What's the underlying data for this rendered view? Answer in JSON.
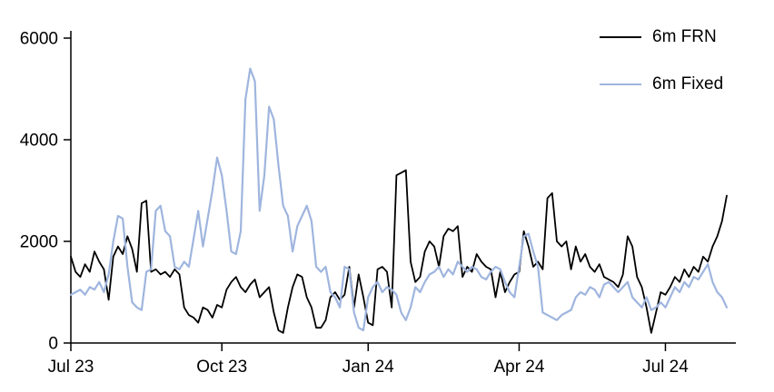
{
  "chart_data": {
    "type": "line",
    "title": "",
    "xlabel": "",
    "ylabel": "",
    "ylim": [
      0,
      6000
    ],
    "grid": false,
    "legend_position": "top-right",
    "x_tick_labels": [
      "Jul 23",
      "Oct 23",
      "Jan 24",
      "Apr 24",
      "Jul 24"
    ],
    "x_tick_indices": [
      0,
      32,
      63,
      95,
      126
    ],
    "y_ticks": [
      0,
      2000,
      4000,
      6000
    ],
    "axis_color": "#000000",
    "series": [
      {
        "name": "6m FRN",
        "color": "#000000",
        "width": 1.8,
        "values": [
          1700,
          1400,
          1300,
          1550,
          1400,
          1800,
          1600,
          1450,
          850,
          1700,
          1900,
          1750,
          2100,
          1850,
          1400,
          2750,
          2800,
          1400,
          1450,
          1350,
          1400,
          1300,
          1450,
          1350,
          700,
          550,
          500,
          400,
          700,
          650,
          500,
          750,
          700,
          1050,
          1200,
          1300,
          1100,
          1000,
          1150,
          1250,
          900,
          1000,
          1100,
          600,
          250,
          200,
          700,
          1100,
          1350,
          1300,
          900,
          700,
          300,
          300,
          450,
          900,
          1000,
          850,
          950,
          1500,
          700,
          1350,
          900,
          400,
          350,
          1450,
          1500,
          1400,
          700,
          3300,
          3350,
          3400,
          1600,
          1200,
          1300,
          1800,
          2000,
          1900,
          1500,
          2100,
          2250,
          2200,
          2300,
          1300,
          1500,
          1400,
          1750,
          1600,
          1500,
          1450,
          900,
          1400,
          1000,
          1200,
          1350,
          1400,
          2200,
          1900,
          1500,
          1600,
          1450,
          2850,
          2950,
          2000,
          1900,
          2000,
          1450,
          1900,
          1600,
          1750,
          1500,
          1400,
          1550,
          1300,
          1250,
          1200,
          1100,
          1350,
          2100,
          1900,
          1300,
          1100,
          700,
          200,
          600,
          1000,
          950,
          1100,
          1300,
          1200,
          1450,
          1300,
          1500,
          1400,
          1700,
          1600,
          1900,
          2100,
          2400,
          2900
        ]
      },
      {
        "name": "6m Fixed",
        "color": "#9fb5de",
        "width": 2.2,
        "values": [
          950,
          1000,
          1050,
          950,
          1100,
          1050,
          1200,
          1000,
          1350,
          2000,
          2500,
          2450,
          1500,
          800,
          700,
          650,
          1400,
          1450,
          2600,
          2700,
          2200,
          2100,
          1500,
          1450,
          1600,
          1500,
          2050,
          2600,
          1900,
          2450,
          3000,
          3650,
          3300,
          2600,
          1800,
          1750,
          2200,
          4800,
          5400,
          5150,
          2600,
          3300,
          4650,
          4400,
          3500,
          2700,
          2500,
          1800,
          2300,
          2500,
          2700,
          2400,
          1500,
          1400,
          1500,
          1000,
          900,
          700,
          1500,
          1450,
          600,
          300,
          250,
          900,
          1100,
          1200,
          1000,
          1100,
          1050,
          950,
          600,
          450,
          700,
          1100,
          1000,
          1200,
          1350,
          1400,
          1500,
          1300,
          1450,
          1350,
          1600,
          1500,
          1400,
          1500,
          1450,
          1300,
          1250,
          1400,
          1500,
          1450,
          1200,
          1000,
          900,
          1500,
          2100,
          2150,
          1800,
          1500,
          600,
          550,
          500,
          450,
          550,
          600,
          650,
          900,
          1000,
          950,
          1100,
          1050,
          900,
          1150,
          1200,
          1100,
          1000,
          1100,
          1200,
          900,
          800,
          700,
          900,
          650,
          700,
          800,
          700,
          900,
          1100,
          1000,
          1200,
          1100,
          1300,
          1250,
          1400,
          1550,
          1200,
          1000,
          900,
          700
        ]
      }
    ]
  }
}
